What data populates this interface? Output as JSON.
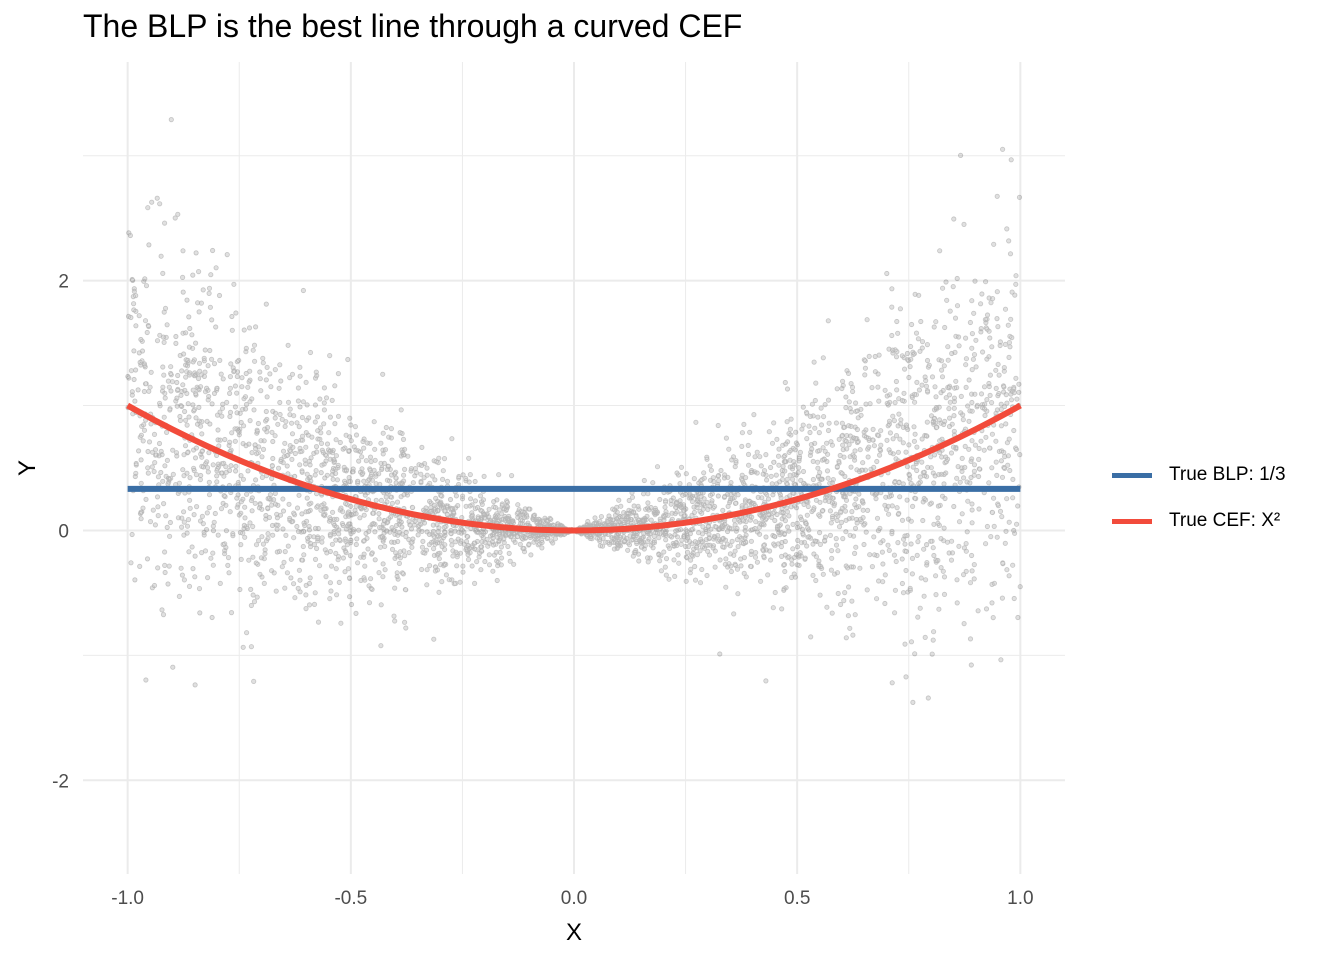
{
  "chart_data": {
    "type": "scatter",
    "title": "The BLP is the best line through a curved CEF",
    "xlabel": "X",
    "ylabel": "Y",
    "xlim": [
      -1.1,
      1.1
    ],
    "ylim": [
      -2.75,
      3.75
    ],
    "x_ticks": [
      "-1.0",
      "-0.5",
      "0.0",
      "0.5",
      "1.0"
    ],
    "x_tick_values": [
      -1.0,
      -0.5,
      0.0,
      0.5,
      1.0
    ],
    "y_ticks": [
      "-2",
      "0",
      "2"
    ],
    "y_tick_values": [
      -2,
      0,
      2
    ],
    "grid": true,
    "legend_position": "right",
    "points_description": "Y = X^2 + noise with noise scale proportional to |X|; approx 5000 points, X uniform on [-1, 1]",
    "series": [
      {
        "name": "True BLP: 1/3",
        "type": "line",
        "color": "#3a6ea5",
        "x": [
          -1.0,
          1.0
        ],
        "y": [
          0.3333,
          0.3333
        ]
      },
      {
        "name": "True CEF: X²",
        "type": "line",
        "color": "#f24b3b",
        "x": [
          -1.0,
          -0.9,
          -0.8,
          -0.7,
          -0.6,
          -0.5,
          -0.4,
          -0.3,
          -0.2,
          -0.1,
          0.0,
          0.1,
          0.2,
          0.3,
          0.4,
          0.5,
          0.6,
          0.7,
          0.8,
          0.9,
          1.0
        ],
        "y": [
          1.0,
          0.81,
          0.64,
          0.49,
          0.36,
          0.25,
          0.16,
          0.09,
          0.04,
          0.01,
          0.0,
          0.01,
          0.04,
          0.09,
          0.16,
          0.25,
          0.36,
          0.49,
          0.64,
          0.81,
          1.0
        ]
      }
    ],
    "colors": {
      "points": "#000000",
      "grid": "#ebebeb"
    }
  }
}
